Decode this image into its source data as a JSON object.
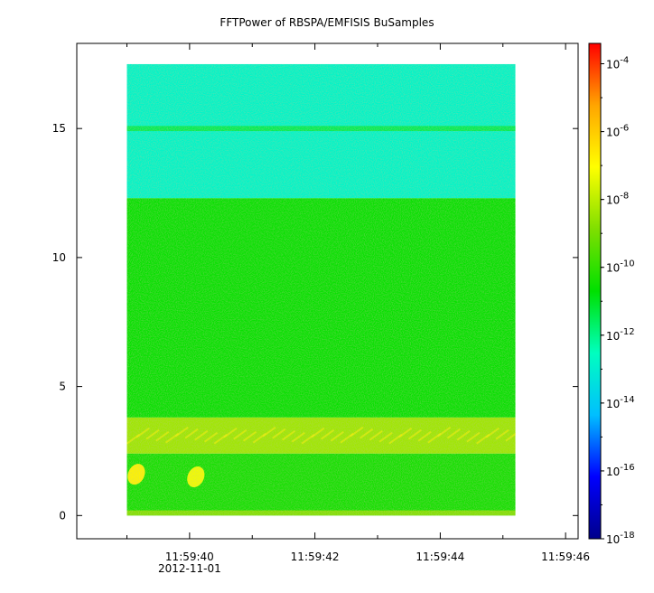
{
  "chart_data": {
    "type": "heatmap",
    "title": "FFTPower of RBSPA/EMFISIS  BuSamples",
    "xlabel": "",
    "ylabel": "",
    "x_ticks": [
      {
        "time": "11:59:40",
        "date": "2012-11-01",
        "sec": 40
      },
      {
        "time": "11:59:42",
        "date": "",
        "sec": 42
      },
      {
        "time": "11:59:44",
        "date": "",
        "sec": 44
      },
      {
        "time": "11:59:46",
        "date": "",
        "sec": 46
      }
    ],
    "x_minor_sec": [
      39,
      41,
      43,
      45
    ],
    "xlim_sec": [
      38.2,
      46.2
    ],
    "data_x_range_sec": [
      39.0,
      45.2
    ],
    "y_ticks": [
      0,
      5,
      10,
      15
    ],
    "ylim": [
      -0.9,
      18.3
    ],
    "data_y_range": [
      0,
      17.5
    ],
    "bands": [
      {
        "y0": 12.3,
        "y1": 17.5,
        "log_power": -12.8
      },
      {
        "y0": 14.9,
        "y1": 15.1,
        "log_power": -11.5
      },
      {
        "y0": 3.8,
        "y1": 12.3,
        "log_power": -10.6
      },
      {
        "y0": 2.4,
        "y1": 3.8,
        "log_power": -8.4
      },
      {
        "y0": 0,
        "y1": 2.4,
        "log_power": -10.4
      },
      {
        "y0": 0,
        "y1": 0.2,
        "log_power": -8.8
      }
    ],
    "blobs": [
      {
        "x_sec": 39.15,
        "y": 1.6,
        "log_power": -6.8
      },
      {
        "x_sec": 40.1,
        "y": 1.5,
        "log_power": -7.2
      }
    ],
    "colorbar": {
      "scale": "log",
      "range_exp": [
        -18,
        -3.4
      ],
      "ticks": [
        {
          "exp": -4,
          "label": "10",
          "sup": "-4"
        },
        {
          "exp": -6,
          "label": "10",
          "sup": "-6"
        },
        {
          "exp": -8,
          "label": "10",
          "sup": "-8"
        },
        {
          "exp": -10,
          "label": "10",
          "sup": "-10"
        },
        {
          "exp": -12,
          "label": "10",
          "sup": "-12"
        },
        {
          "exp": -14,
          "label": "10",
          "sup": "-14"
        },
        {
          "exp": -16,
          "label": "10",
          "sup": "-16"
        },
        {
          "exp": -18,
          "label": "10",
          "sup": "-18"
        }
      ],
      "colormap": [
        "#00008b",
        "#0000ff",
        "#00bfff",
        "#00ffbf",
        "#00e000",
        "#7fdf00",
        "#ffff00",
        "#ffa500",
        "#ff0000"
      ]
    }
  }
}
